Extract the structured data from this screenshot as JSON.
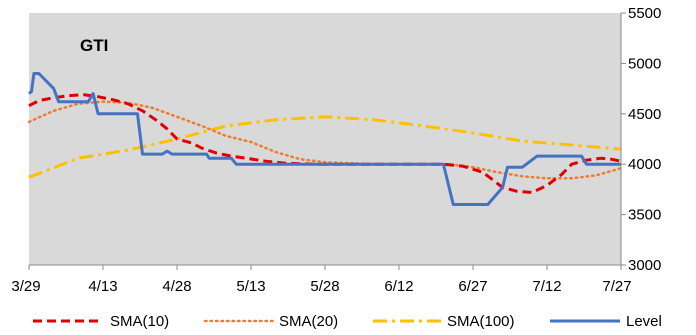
{
  "chart_data": {
    "type": "line",
    "title": "GTI",
    "xlabel": "",
    "ylabel": "",
    "x_ticks": [
      "3/29",
      "4/13",
      "4/28",
      "5/13",
      "5/28",
      "6/12",
      "6/27",
      "7/12",
      "7/27"
    ],
    "x_range_days": [
      0,
      120
    ],
    "y_axis_side": "right",
    "ylim": [
      3000,
      5500
    ],
    "y_ticks": [
      3000,
      3500,
      4000,
      4500,
      5000,
      5500
    ],
    "grid": false,
    "legend_position": "bottom",
    "series": [
      {
        "name": "SMA(10)",
        "color": "#E00000",
        "dash": "dashed",
        "points": [
          [
            0,
            4580
          ],
          [
            2,
            4630
          ],
          [
            5,
            4660
          ],
          [
            8,
            4680
          ],
          [
            11,
            4690
          ],
          [
            14,
            4670
          ],
          [
            17,
            4640
          ],
          [
            20,
            4600
          ],
          [
            23,
            4530
          ],
          [
            26,
            4430
          ],
          [
            28,
            4350
          ],
          [
            30,
            4250
          ],
          [
            33,
            4210
          ],
          [
            35,
            4160
          ],
          [
            38,
            4110
          ],
          [
            41,
            4080
          ],
          [
            44,
            4060
          ],
          [
            48,
            4030
          ],
          [
            52,
            4010
          ],
          [
            58,
            4000
          ],
          [
            70,
            4000
          ],
          [
            84,
            4000
          ],
          [
            88,
            3980
          ],
          [
            92,
            3920
          ],
          [
            96,
            3770
          ],
          [
            99,
            3730
          ],
          [
            102,
            3720
          ],
          [
            105,
            3790
          ],
          [
            108,
            3900
          ],
          [
            110,
            4000
          ],
          [
            113,
            4040
          ],
          [
            116,
            4060
          ],
          [
            118,
            4050
          ],
          [
            120,
            4030
          ]
        ]
      },
      {
        "name": "SMA(20)",
        "color": "#ED7D31",
        "dash": "dotted",
        "points": [
          [
            0,
            4420
          ],
          [
            5,
            4530
          ],
          [
            10,
            4600
          ],
          [
            15,
            4620
          ],
          [
            20,
            4610
          ],
          [
            25,
            4560
          ],
          [
            30,
            4470
          ],
          [
            35,
            4380
          ],
          [
            40,
            4280
          ],
          [
            45,
            4220
          ],
          [
            50,
            4120
          ],
          [
            55,
            4050
          ],
          [
            60,
            4020
          ],
          [
            70,
            4000
          ],
          [
            85,
            4000
          ],
          [
            90,
            3970
          ],
          [
            95,
            3920
          ],
          [
            100,
            3880
          ],
          [
            105,
            3860
          ],
          [
            110,
            3860
          ],
          [
            115,
            3890
          ],
          [
            120,
            3960
          ]
        ]
      },
      {
        "name": "SMA(100)",
        "color": "#FFC000",
        "dash": "dashdot",
        "points": [
          [
            0,
            3870
          ],
          [
            10,
            4060
          ],
          [
            20,
            4140
          ],
          [
            30,
            4250
          ],
          [
            40,
            4380
          ],
          [
            50,
            4440
          ],
          [
            60,
            4470
          ],
          [
            70,
            4440
          ],
          [
            80,
            4380
          ],
          [
            90,
            4310
          ],
          [
            100,
            4230
          ],
          [
            110,
            4190
          ],
          [
            120,
            4150
          ]
        ]
      },
      {
        "name": "Level",
        "color": "#4472C4",
        "dash": "solid",
        "points": [
          [
            0,
            4700
          ],
          [
            0.5,
            4720
          ],
          [
            1,
            4900
          ],
          [
            2,
            4900
          ],
          [
            5,
            4750
          ],
          [
            6,
            4620
          ],
          [
            12,
            4620
          ],
          [
            13,
            4700
          ],
          [
            14,
            4500
          ],
          [
            22,
            4500
          ],
          [
            23,
            4100
          ],
          [
            27,
            4100
          ],
          [
            28,
            4130
          ],
          [
            29,
            4100
          ],
          [
            36,
            4100
          ],
          [
            36.5,
            4060
          ],
          [
            41,
            4060
          ],
          [
            42,
            4000
          ],
          [
            84,
            4000
          ],
          [
            86,
            3600
          ],
          [
            93,
            3600
          ],
          [
            96,
            3770
          ],
          [
            97,
            3970
          ],
          [
            100,
            3970
          ],
          [
            103,
            4080
          ],
          [
            112,
            4080
          ],
          [
            113,
            4000
          ],
          [
            120,
            4000
          ]
        ]
      }
    ]
  }
}
